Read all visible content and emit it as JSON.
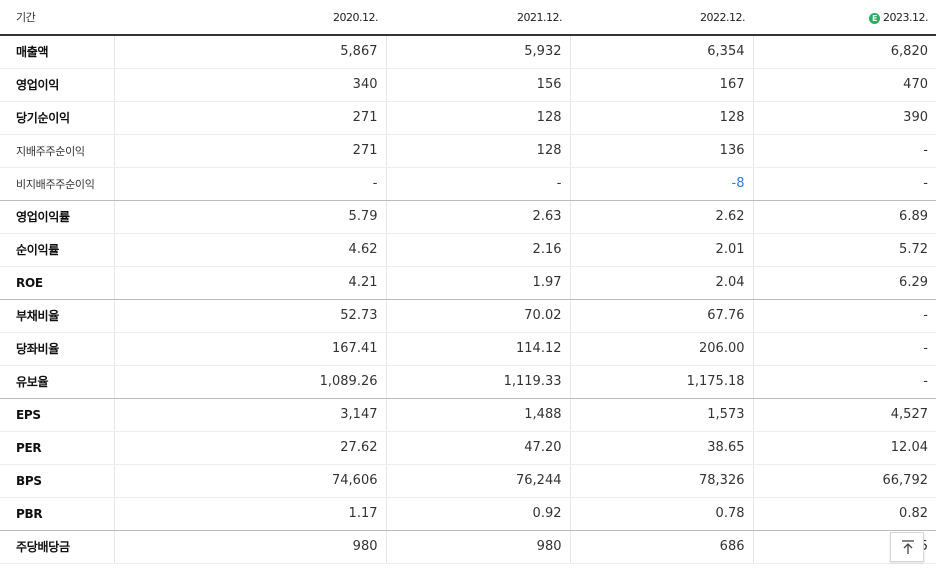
{
  "header": {
    "period_label": "기간",
    "columns": [
      "2020.12.",
      "2021.12.",
      "2022.12.",
      "2023.12."
    ],
    "estimate_icon_letter": "E"
  },
  "rows": [
    {
      "label": "매출액",
      "values": [
        "5,867",
        "5,932",
        "6,354",
        "6,820"
      ]
    },
    {
      "label": "영업이익",
      "values": [
        "340",
        "156",
        "167",
        "470"
      ]
    },
    {
      "label": "당기순이익",
      "values": [
        "271",
        "128",
        "128",
        "390"
      ]
    },
    {
      "label": "지배주주순이익",
      "values": [
        "271",
        "128",
        "136",
        "-"
      ]
    },
    {
      "label": "비지배주주순이익",
      "values": [
        "-",
        "-",
        "-8",
        "-"
      ]
    },
    {
      "label": "영업이익률",
      "values": [
        "5.79",
        "2.63",
        "2.62",
        "6.89"
      ]
    },
    {
      "label": "순이익률",
      "values": [
        "4.62",
        "2.16",
        "2.01",
        "5.72"
      ]
    },
    {
      "label": "ROE",
      "values": [
        "4.21",
        "1.97",
        "2.04",
        "6.29"
      ]
    },
    {
      "label": "부채비율",
      "values": [
        "52.73",
        "70.02",
        "67.76",
        "-"
      ]
    },
    {
      "label": "당좌비율",
      "values": [
        "167.41",
        "114.12",
        "206.00",
        "-"
      ]
    },
    {
      "label": "유보율",
      "values": [
        "1,089.26",
        "1,119.33",
        "1,175.18",
        "-"
      ]
    },
    {
      "label": "EPS",
      "values": [
        "3,147",
        "1,488",
        "1,573",
        "4,527"
      ]
    },
    {
      "label": "PER",
      "values": [
        "27.62",
        "47.20",
        "38.65",
        "12.04"
      ]
    },
    {
      "label": "BPS",
      "values": [
        "74,606",
        "76,244",
        "78,326",
        "66,792"
      ]
    },
    {
      "label": "PBR",
      "values": [
        "1.17",
        "0.92",
        "0.78",
        "0.82"
      ]
    },
    {
      "label": "주당배당금",
      "values": [
        "980",
        "980",
        "686",
        "5"
      ]
    }
  ],
  "colors": {
    "negative_value": "#2a7fd4",
    "estimate_badge": "#26b05f"
  },
  "scroll_top_icon": "arrow-up-to-line-icon"
}
